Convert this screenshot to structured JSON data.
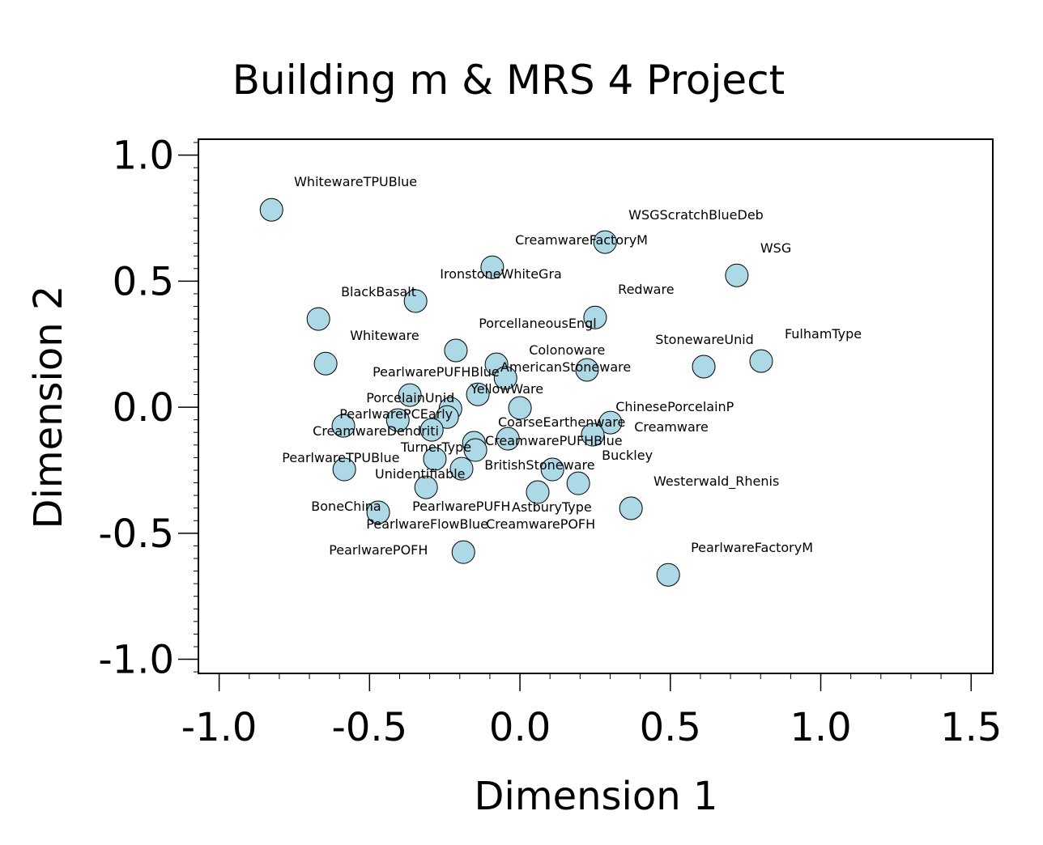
{
  "chart_data": {
    "type": "scatter",
    "title": "Building m & MRS 4 Project",
    "xlabel": "Dimension 1",
    "ylabel": "Dimension 2",
    "xlim": [
      -1.069,
      1.572
    ],
    "ylim": [
      -1.056,
      1.063
    ],
    "xticks": [
      -1.0,
      -0.5,
      0.0,
      0.5,
      1.0,
      1.5
    ],
    "xtick_labels": [
      "-1.0",
      "-0.5",
      "0.0",
      "0.5",
      "1.0",
      "1.5"
    ],
    "yticks": [
      1.0,
      0.5,
      0.0,
      -0.5,
      -1.0
    ],
    "ytick_labels": [
      "1.0",
      "0.5",
      "0.0",
      "-0.5",
      "-1.0"
    ],
    "grid": false,
    "marker_color": "#add8e6",
    "points": [
      {
        "x": -0.826,
        "y": 0.783
      },
      {
        "x": 0.283,
        "y": 0.655
      },
      {
        "x": -0.092,
        "y": 0.555
      },
      {
        "x": 0.721,
        "y": 0.523
      },
      {
        "x": -0.347,
        "y": 0.421
      },
      {
        "x": -0.67,
        "y": 0.35
      },
      {
        "x": 0.25,
        "y": 0.356
      },
      {
        "x": 0.802,
        "y": 0.183
      },
      {
        "x": 0.611,
        "y": 0.161
      },
      {
        "x": -0.646,
        "y": 0.173
      },
      {
        "x": -0.213,
        "y": 0.225
      },
      {
        "x": -0.078,
        "y": 0.17
      },
      {
        "x": -0.048,
        "y": 0.116
      },
      {
        "x": 0.223,
        "y": 0.148
      },
      {
        "x": -0.366,
        "y": 0.048
      },
      {
        "x": -0.231,
        "y": -0.006
      },
      {
        "x": -0.242,
        "y": -0.039
      },
      {
        "x": -0.406,
        "y": -0.051
      },
      {
        "x": -0.587,
        "y": -0.074
      },
      {
        "x": -0.293,
        "y": -0.09
      },
      {
        "x": -0.14,
        "y": 0.051
      },
      {
        "x": 0.0,
        "y": -0.003
      },
      {
        "x": 0.301,
        "y": -0.061
      },
      {
        "x": 0.242,
        "y": -0.109
      },
      {
        "x": -0.153,
        "y": -0.141
      },
      {
        "x": -0.148,
        "y": -0.17
      },
      {
        "x": -0.04,
        "y": -0.125
      },
      {
        "x": -0.283,
        "y": -0.205
      },
      {
        "x": -0.194,
        "y": -0.244
      },
      {
        "x": -0.584,
        "y": -0.247
      },
      {
        "x": 0.108,
        "y": -0.247
      },
      {
        "x": 0.194,
        "y": -0.302
      },
      {
        "x": 0.059,
        "y": -0.337
      },
      {
        "x": -0.312,
        "y": -0.318
      },
      {
        "x": -0.471,
        "y": -0.417
      },
      {
        "x": -0.188,
        "y": -0.575
      },
      {
        "x": 0.369,
        "y": -0.401
      },
      {
        "x": 0.493,
        "y": -0.665
      }
    ],
    "labels": [
      {
        "text": "WhitewareTPUBlue",
        "x": -0.751,
        "y": 0.896
      },
      {
        "text": "WSGScratchBlueDeb",
        "x": 0.361,
        "y": 0.764
      },
      {
        "text": "CreamwareFactoryM",
        "x": -0.016,
        "y": 0.665
      },
      {
        "text": "WSG",
        "x": 0.799,
        "y": 0.633
      },
      {
        "text": "IronstoneWhiteGra",
        "x": -0.266,
        "y": 0.53
      },
      {
        "text": "BlackBasalt",
        "x": -0.595,
        "y": 0.459
      },
      {
        "text": "Redware",
        "x": 0.326,
        "y": 0.469
      },
      {
        "text": "PorcellaneousEngl",
        "x": -0.137,
        "y": 0.334
      },
      {
        "text": "Whiteware",
        "x": -0.565,
        "y": 0.286
      },
      {
        "text": "StonewareUnid",
        "x": 0.45,
        "y": 0.27
      },
      {
        "text": "FulhamType",
        "x": 0.88,
        "y": 0.292
      },
      {
        "text": "Colonoware",
        "x": 0.03,
        "y": 0.228
      },
      {
        "text": "PearlwarePUFHBlue",
        "x": -0.49,
        "y": 0.141
      },
      {
        "text": "AmericanStoneware",
        "x": -0.065,
        "y": 0.161
      },
      {
        "text": "YellowWare",
        "x": -0.164,
        "y": 0.074
      },
      {
        "text": "PorcelainUnid",
        "x": -0.511,
        "y": 0.039
      },
      {
        "text": "ChinesePorcelainP",
        "x": 0.318,
        "y": 0.003
      },
      {
        "text": "PearlwarePCEarly",
        "x": -0.6,
        "y": -0.026
      },
      {
        "text": "CoarseEarthenware",
        "x": -0.073,
        "y": -0.058
      },
      {
        "text": "Creamware",
        "x": 0.38,
        "y": -0.077
      },
      {
        "text": "CreamwareDendriti",
        "x": -0.689,
        "y": -0.093
      },
      {
        "text": "CreamwarePUFHBlue",
        "x": -0.116,
        "y": -0.132
      },
      {
        "text": "TurnerType",
        "x": -0.396,
        "y": -0.157
      },
      {
        "text": "Buckley",
        "x": 0.272,
        "y": -0.189
      },
      {
        "text": "PearlwareTPUBlue",
        "x": -0.791,
        "y": -0.199
      },
      {
        "text": "BritishStoneware",
        "x": -0.118,
        "y": -0.228
      },
      {
        "text": "Unidentifiable",
        "x": -0.482,
        "y": -0.263
      },
      {
        "text": "Westerwald_Rhenis",
        "x": 0.444,
        "y": -0.292
      },
      {
        "text": "BoneChina",
        "x": -0.694,
        "y": -0.392
      },
      {
        "text": "PearlwarePUFH",
        "x": -0.358,
        "y": -0.392
      },
      {
        "text": "AstburyType",
        "x": -0.027,
        "y": -0.395
      },
      {
        "text": "PearlwareFlowBlue",
        "x": -0.511,
        "y": -0.462
      },
      {
        "text": "CreamwarePOFH",
        "x": -0.113,
        "y": -0.462
      },
      {
        "text": "PearlwarePOFH",
        "x": -0.635,
        "y": -0.565
      },
      {
        "text": "PearlwareFactoryM",
        "x": 0.568,
        "y": -0.555
      }
    ]
  }
}
